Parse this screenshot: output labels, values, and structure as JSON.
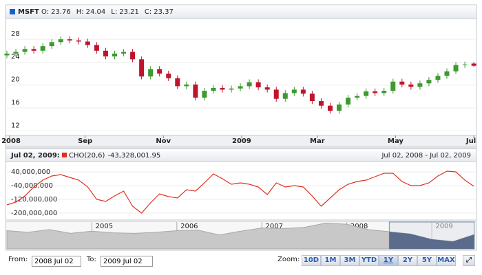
{
  "chart_data": [
    {
      "type": "candlestick",
      "title": "MSFT",
      "header_fields": [
        "O:",
        "H:",
        "L:",
        "C:"
      ],
      "x": [
        0,
        7,
        14,
        21,
        28,
        35,
        42,
        49,
        56,
        63,
        70,
        77,
        84,
        91,
        98,
        105,
        112,
        119,
        126,
        133,
        140,
        147,
        154,
        161,
        168,
        175,
        182,
        189,
        196,
        203,
        210,
        217,
        224,
        231,
        238,
        245,
        252,
        259,
        266,
        273,
        280,
        287,
        294,
        301,
        308,
        315,
        322,
        329,
        336,
        343,
        350,
        357,
        364
      ],
      "open": [
        25.2,
        25.5,
        25.8,
        26.3,
        26.0,
        26.8,
        27.5,
        28.0,
        27.8,
        27.6,
        27.0,
        26.0,
        25.0,
        25.5,
        25.8,
        24.5,
        21.5,
        22.8,
        22.0,
        21.2,
        19.8,
        20.1,
        17.8,
        19.0,
        19.5,
        19.2,
        19.4,
        19.8,
        20.5,
        19.6,
        19.2,
        17.6,
        18.6,
        19.2,
        18.5,
        17.2,
        16.4,
        15.5,
        16.6,
        17.8,
        18.1,
        18.9,
        18.6,
        19.0,
        20.6,
        20.1,
        19.7,
        20.3,
        20.9,
        21.6,
        22.4,
        23.5,
        23.76
      ],
      "high": [
        26.0,
        26.3,
        26.8,
        26.8,
        27.3,
        28.0,
        28.5,
        28.5,
        28.3,
        28.1,
        27.5,
        26.5,
        26.0,
        26.3,
        26.3,
        25.0,
        23.3,
        23.3,
        22.5,
        21.7,
        20.6,
        20.6,
        19.5,
        20.0,
        20.0,
        19.9,
        20.3,
        21.0,
        21.0,
        20.1,
        19.7,
        19.1,
        19.7,
        19.7,
        19.0,
        17.7,
        16.9,
        17.1,
        18.3,
        18.6,
        19.4,
        19.4,
        19.5,
        21.1,
        21.1,
        20.6,
        20.8,
        21.4,
        22.1,
        22.9,
        24.0,
        24.1,
        24.04
      ],
      "low": [
        24.7,
        25.0,
        25.3,
        25.5,
        25.5,
        26.3,
        27.0,
        27.3,
        27.1,
        26.5,
        25.5,
        24.5,
        24.5,
        25.0,
        24.0,
        21.0,
        21.0,
        21.5,
        20.7,
        19.3,
        19.3,
        17.3,
        17.3,
        18.5,
        18.7,
        18.7,
        18.9,
        19.3,
        19.1,
        18.7,
        17.1,
        17.1,
        18.1,
        18.0,
        16.7,
        15.9,
        15.0,
        15.0,
        16.1,
        17.3,
        17.6,
        18.1,
        18.1,
        18.5,
        19.6,
        19.2,
        19.2,
        19.8,
        20.4,
        21.1,
        21.9,
        23.0,
        23.21
      ],
      "close": [
        25.5,
        25.8,
        26.3,
        26.0,
        26.8,
        27.5,
        28.0,
        27.8,
        27.6,
        27.0,
        26.0,
        25.0,
        25.5,
        25.8,
        24.5,
        21.5,
        22.8,
        22.0,
        21.2,
        19.8,
        20.1,
        17.8,
        19.0,
        19.5,
        19.2,
        19.4,
        19.8,
        20.5,
        19.6,
        19.2,
        17.6,
        18.6,
        19.2,
        18.5,
        17.2,
        16.4,
        15.5,
        16.6,
        17.8,
        18.1,
        18.9,
        18.6,
        19.0,
        20.6,
        20.1,
        19.7,
        20.3,
        20.9,
        21.6,
        22.4,
        23.5,
        23.6,
        23.37
      ],
      "up_color": "#3c9a2e",
      "down_color": "#c0142c",
      "title_color": "#1a5fd0",
      "xlim": [
        0,
        365
      ],
      "ylim": [
        11.2,
        31.5
      ],
      "yticks": [
        12,
        16,
        20,
        24,
        28
      ],
      "xticks": [
        {
          "value": 2,
          "label": "2008"
        },
        {
          "value": 61,
          "label": "Sep"
        },
        {
          "value": 122,
          "label": "Nov"
        },
        {
          "value": 183,
          "label": "2009"
        },
        {
          "value": 242,
          "label": "Mar"
        },
        {
          "value": 303,
          "label": "May"
        },
        {
          "value": 364,
          "label": "Jul"
        }
      ],
      "grid": true
    },
    {
      "type": "line",
      "date_label": "Jul 02, 2009:",
      "name": "CHO(20,6)",
      "header_value": {
        "value": -43328001.95,
        "label": "-43,328,001.95"
      },
      "range_label": "Jul 02, 2008 - Jul 02, 2009",
      "color": "#e0301e",
      "x": [
        0,
        7,
        14,
        21,
        28,
        35,
        42,
        49,
        56,
        63,
        70,
        77,
        84,
        91,
        98,
        105,
        112,
        119,
        126,
        133,
        140,
        147,
        154,
        161,
        168,
        175,
        182,
        189,
        196,
        203,
        210,
        217,
        224,
        231,
        238,
        245,
        252,
        259,
        266,
        273,
        280,
        287,
        294,
        301,
        308,
        315,
        322,
        329,
        336,
        343,
        350,
        357,
        364
      ],
      "values": [
        -152000000,
        -136000000,
        -100000000,
        -48000000,
        -8000000,
        16000000,
        24000000,
        8000000,
        -8000000,
        -48000000,
        -120000000,
        -132000000,
        -100000000,
        -72000000,
        -160000000,
        -200000000,
        -140000000,
        -88000000,
        -104000000,
        -112000000,
        -64000000,
        -72000000,
        -24000000,
        28000000,
        0,
        -32000000,
        -24000000,
        -32000000,
        -48000000,
        -92000000,
        -24000000,
        -48000000,
        -40000000,
        -48000000,
        -100000000,
        -160000000,
        -112000000,
        -64000000,
        -32000000,
        -16000000,
        -8000000,
        12000000,
        32000000,
        32000000,
        -16000000,
        -40000000,
        -40000000,
        -24000000,
        16000000,
        44000000,
        40000000,
        -8000000,
        -43328001.95
      ],
      "xlim": [
        0,
        365
      ],
      "ylim": [
        -232000000,
        100000000
      ],
      "yticks": [
        {
          "value": 40000000,
          "label": "40,000,000"
        },
        {
          "value": -40000000,
          "label": "-40,000,000"
        },
        {
          "value": -120000000,
          "label": "-120,000,000"
        },
        {
          "value": -200000000,
          "label": "-200,000,000"
        }
      ]
    },
    {
      "type": "area",
      "x": [
        2004.0,
        2004.25,
        2004.5,
        2004.75,
        2005.0,
        2005.25,
        2005.5,
        2005.75,
        2006.0,
        2006.25,
        2006.5,
        2006.75,
        2007.0,
        2007.25,
        2007.5,
        2007.75,
        2008.0,
        2008.25,
        2008.5,
        2008.75,
        2009.0,
        2009.25,
        2009.5
      ],
      "values": [
        27,
        25.5,
        28,
        24.5,
        26.5,
        25,
        24.5,
        25.5,
        27,
        27.5,
        23,
        26.5,
        29.5,
        29,
        30,
        34,
        33,
        28,
        26,
        24,
        19,
        17,
        23.5
      ],
      "color": "#c8c8c8",
      "selected_color": "#5b6b8c",
      "xlim": [
        2004.0,
        2009.51
      ],
      "ylim": [
        10,
        35
      ],
      "xticks": [
        2005,
        2006,
        2007,
        2008,
        2009
      ],
      "selection": [
        2008.5,
        2009.5
      ]
    }
  ],
  "controls": {
    "from_label": "From:",
    "from": "2008 Jul 02",
    "to_label": "To:",
    "to": "2009 Jul 02",
    "zoom_label": "Zoom:",
    "zoom_buttons": [
      "10D",
      "1M",
      "3M",
      "YTD",
      "1Y",
      "2Y",
      "5Y",
      "MAX"
    ],
    "selected_zoom": "1Y"
  }
}
